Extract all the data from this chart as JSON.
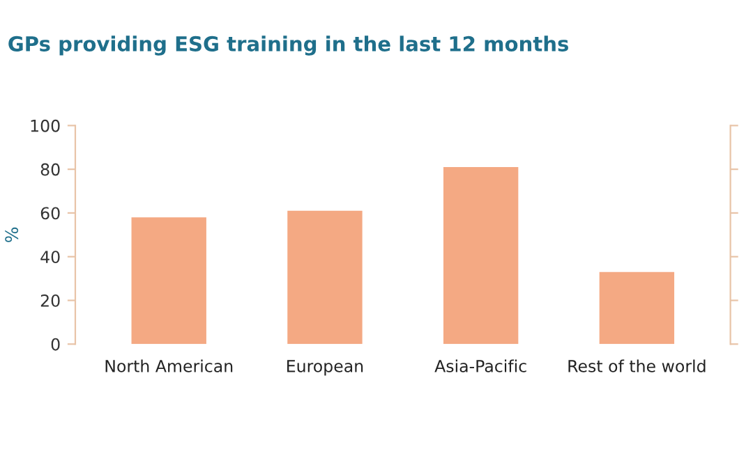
{
  "chart_data": {
    "type": "bar",
    "title": "GPs providing ESG training in the last 12 months",
    "ylabel": "%",
    "categories": [
      "North American",
      "European",
      "Asia-Pacific",
      "Rest of the world"
    ],
    "values": [
      58,
      61,
      81,
      33
    ],
    "color": "#f4a983",
    "ylim": [
      0,
      100
    ],
    "yticks": [
      0,
      20,
      40,
      60,
      80,
      100
    ],
    "grid": false,
    "legend": false
  }
}
